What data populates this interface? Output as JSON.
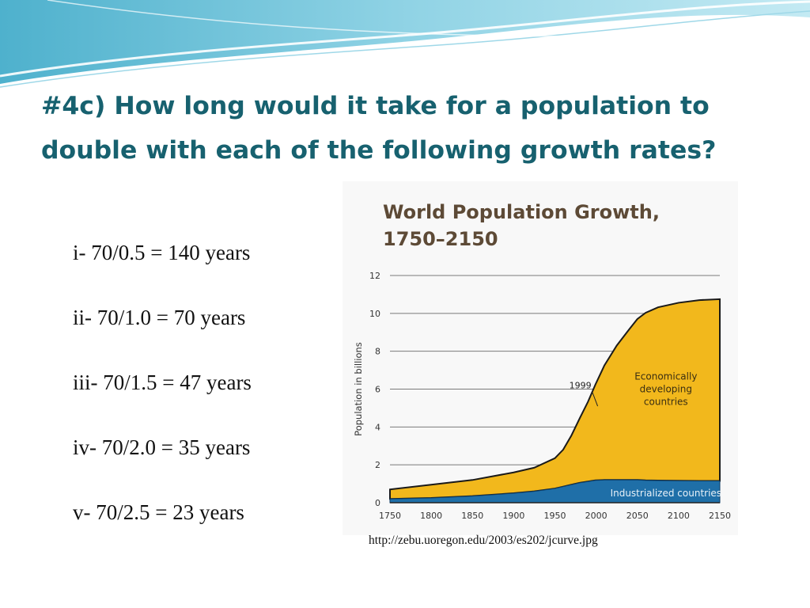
{
  "slide": {
    "title": "#4c) How long would it take for a population to double with each of the following growth rates?",
    "items": [
      "i- 70/0.5 = 140 years",
      "ii- 70/1.0 = 70 years",
      "iii- 70/1.5 = 47 years",
      "iv- 70/2.0 = 35 years",
      "v- 70/2.5 = 23 years"
    ],
    "source": "http://zebu.uoregon.edu/2003/es202/jcurve.jpg"
  },
  "colors": {
    "title": "#17616f",
    "developing": "#f2b81c",
    "industrialized": "#1f6fa8",
    "chart_title": "#5d4a36"
  },
  "chart_data": {
    "type": "area",
    "title_lines": [
      "World Population Growth,",
      "1750–2150"
    ],
    "ylabel": "Population in billions",
    "xlabel": "",
    "xlim": [
      1750,
      2150
    ],
    "ylim": [
      0,
      12
    ],
    "x_ticks": [
      1750,
      1800,
      1850,
      1900,
      1950,
      2000,
      2050,
      2100,
      2150
    ],
    "y_ticks": [
      0,
      2,
      4,
      6,
      8,
      10,
      12
    ],
    "grid": true,
    "stacked": true,
    "x": [
      1750,
      1800,
      1850,
      1900,
      1925,
      1950,
      1960,
      1970,
      1980,
      1990,
      1999,
      2010,
      2025,
      2040,
      2050,
      2060,
      2075,
      2100,
      2125,
      2150
    ],
    "series": [
      {
        "name": "Industrialized countries",
        "values": [
          0.2,
          0.25,
          0.35,
          0.5,
          0.6,
          0.75,
          0.85,
          0.95,
          1.05,
          1.12,
          1.18,
          1.2,
          1.2,
          1.2,
          1.2,
          1.18,
          1.17,
          1.16,
          1.15,
          1.15
        ]
      },
      {
        "name": "Economically developing countries",
        "values": [
          0.5,
          0.7,
          0.85,
          1.1,
          1.25,
          1.6,
          1.95,
          2.6,
          3.4,
          4.2,
          5.05,
          6.05,
          7.1,
          7.95,
          8.5,
          8.85,
          9.15,
          9.4,
          9.55,
          9.6
        ]
      }
    ],
    "annotations": [
      {
        "text": "1999",
        "x": 1999,
        "y": 6.2
      },
      {
        "text": "Economically developing countries",
        "lines": [
          "Economically",
          "developing",
          "countries"
        ],
        "x": 2075,
        "y": 6.5
      },
      {
        "text": "Industrialized countries",
        "x": 2075,
        "y": 0.5
      }
    ]
  }
}
